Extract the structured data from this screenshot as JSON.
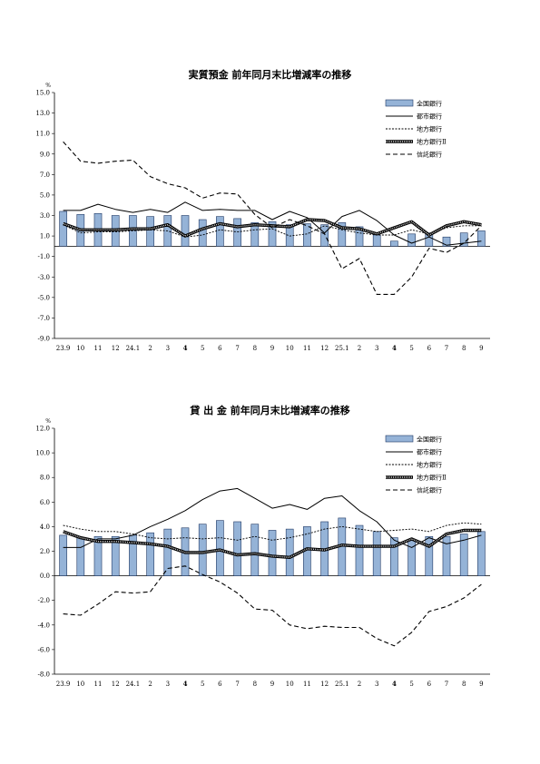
{
  "chart_data": [
    {
      "type": "bar",
      "title": "実質預金 前年同月末比増減率の推移",
      "unit": "%",
      "categories": [
        "23.9",
        "10",
        "11",
        "12",
        "24.1",
        "2",
        "3",
        "4",
        "5",
        "6",
        "7",
        "8",
        "9",
        "10",
        "11",
        "12",
        "25.1",
        "2",
        "3",
        "4",
        "5",
        "6",
        "7",
        "8",
        "9"
      ],
      "bold_categories": [
        "4"
      ],
      "ylim": [
        -9.0,
        15.0
      ],
      "yticks": [
        "15.0",
        "13.0",
        "11.0",
        "9.0",
        "7.0",
        "5.0",
        "3.0",
        "1.0",
        "-1.0",
        "-3.0",
        "-5.0",
        "-7.0",
        "-9.0"
      ],
      "baseline": 0,
      "series": [
        {
          "name": "全国銀行",
          "kind": "bar",
          "values": [
            3.4,
            3.1,
            3.2,
            3.0,
            3.0,
            2.9,
            3.0,
            3.0,
            2.6,
            2.9,
            2.7,
            2.3,
            2.4,
            2.1,
            2.2,
            2.1,
            2.3,
            1.9,
            1.1,
            0.5,
            1.2,
            1.3,
            0.9,
            1.3,
            1.5
          ]
        },
        {
          "name": "都市銀行",
          "kind": "line",
          "style": "solid",
          "values": [
            3.5,
            3.5,
            4.1,
            3.6,
            3.3,
            3.6,
            3.3,
            4.3,
            3.5,
            3.6,
            3.5,
            3.5,
            2.6,
            3.4,
            2.8,
            1.3,
            2.9,
            3.5,
            2.5,
            1.1,
            0.3,
            0.9,
            0.1,
            0.3,
            0.5
          ]
        },
        {
          "name": "地方銀行",
          "kind": "line",
          "style": "dotted",
          "values": [
            2.1,
            1.3,
            1.4,
            1.4,
            1.5,
            1.6,
            1.5,
            0.9,
            1.1,
            1.6,
            1.4,
            1.6,
            1.7,
            1.0,
            1.2,
            2.0,
            1.6,
            1.3,
            1.1,
            1.1,
            1.6,
            1.2,
            1.8,
            2.0,
            2.0
          ]
        },
        {
          "name": "地方銀行Ⅱ",
          "kind": "line",
          "style": "thick",
          "values": [
            2.2,
            1.6,
            1.6,
            1.6,
            1.7,
            1.7,
            2.1,
            1.0,
            1.7,
            2.2,
            1.9,
            2.1,
            2.0,
            1.9,
            2.6,
            2.5,
            1.8,
            1.7,
            1.2,
            1.8,
            2.4,
            1.1,
            2.0,
            2.4,
            2.1
          ]
        },
        {
          "name": "信託銀行",
          "kind": "line",
          "style": "dashed",
          "values": [
            10.2,
            8.3,
            8.1,
            8.3,
            8.4,
            6.8,
            6.1,
            5.7,
            4.7,
            5.2,
            5.1,
            3.1,
            1.8,
            2.6,
            2.0,
            1.2,
            -2.2,
            -1.2,
            -4.7,
            -4.7,
            -3.0,
            -0.2,
            -0.6,
            0.3,
            2.0
          ]
        }
      ]
    },
    {
      "type": "bar",
      "title": "貸 出 金 前年同月末比増減率の推移",
      "unit": "%",
      "categories": [
        "23.9",
        "10",
        "11",
        "12",
        "24.1",
        "2",
        "3",
        "4",
        "5",
        "6",
        "7",
        "8",
        "9",
        "10",
        "11",
        "12",
        "25.1",
        "2",
        "3",
        "4",
        "5",
        "6",
        "7",
        "8",
        "9"
      ],
      "bold_categories": [
        "4"
      ],
      "ylim": [
        -8.0,
        12.0
      ],
      "yticks": [
        "12.0",
        "10.0",
        "8.0",
        "6.0",
        "4.0",
        "2.0",
        "0.0",
        "-2.0",
        "-4.0",
        "-6.0",
        "-8.0"
      ],
      "baseline": 0,
      "series": [
        {
          "name": "全国銀行",
          "kind": "bar",
          "values": [
            3.3,
            3.1,
            3.2,
            3.2,
            3.3,
            3.5,
            3.8,
            3.9,
            4.2,
            4.5,
            4.4,
            4.2,
            3.7,
            3.8,
            4.0,
            4.4,
            4.7,
            4.1,
            3.6,
            3.1,
            2.9,
            3.2,
            3.2,
            3.4,
            3.6
          ]
        },
        {
          "name": "都市銀行",
          "kind": "line",
          "style": "solid",
          "values": [
            2.3,
            2.3,
            3.0,
            3.0,
            3.3,
            4.0,
            4.6,
            5.3,
            6.2,
            6.9,
            7.1,
            6.3,
            5.5,
            5.8,
            5.4,
            6.3,
            6.5,
            5.3,
            4.4,
            2.9,
            2.3,
            3.1,
            2.6,
            2.9,
            3.3
          ]
        },
        {
          "name": "地方銀行",
          "kind": "line",
          "style": "dotted",
          "values": [
            4.1,
            3.8,
            3.6,
            3.6,
            3.4,
            3.1,
            3.0,
            3.1,
            3.0,
            3.1,
            2.9,
            3.2,
            2.9,
            3.1,
            3.4,
            3.8,
            4.0,
            3.8,
            3.6,
            3.7,
            3.8,
            3.6,
            4.1,
            4.3,
            4.2
          ]
        },
        {
          "name": "地方銀行Ⅱ",
          "kind": "line",
          "style": "thick",
          "values": [
            3.6,
            3.1,
            2.8,
            2.8,
            2.7,
            2.6,
            2.4,
            1.9,
            1.9,
            2.1,
            1.7,
            1.8,
            1.6,
            1.5,
            2.2,
            2.1,
            2.5,
            2.4,
            2.4,
            2.4,
            3.0,
            2.4,
            3.4,
            3.7,
            3.7
          ]
        },
        {
          "name": "信託銀行",
          "kind": "line",
          "style": "dashed",
          "values": [
            -3.1,
            -3.2,
            -2.3,
            -1.3,
            -1.4,
            -1.3,
            0.6,
            0.8,
            0.1,
            -0.5,
            -1.4,
            -2.7,
            -2.8,
            -4.0,
            -4.3,
            -4.1,
            -4.2,
            -4.2,
            -5.1,
            -5.7,
            -4.6,
            -2.9,
            -2.5,
            -1.8,
            -0.7
          ]
        }
      ]
    }
  ]
}
